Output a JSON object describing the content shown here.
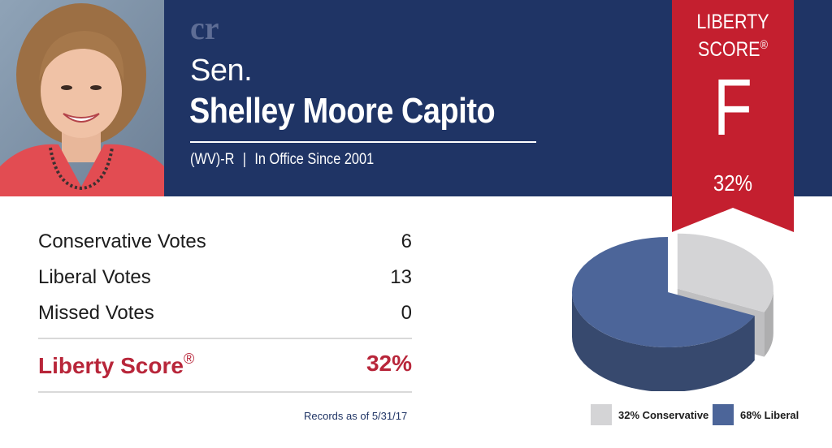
{
  "senator": {
    "prefix": "Sen.",
    "name": "Shelley Moore Capito",
    "state_party": "(WV)-R",
    "separator": "|",
    "tenure": "In Office Since 2001"
  },
  "logo": {
    "text": "cr"
  },
  "ribbon": {
    "title_line1": "LIBERTY",
    "title_line2": "SCORE",
    "registered_mark": "®",
    "grade": "F",
    "percent": "32%"
  },
  "votes": {
    "rows": [
      {
        "label": "Conservative Votes",
        "value": "6"
      },
      {
        "label": "Liberal Votes",
        "value": "13"
      },
      {
        "label": "Missed Votes",
        "value": "0"
      }
    ],
    "score_label": "Liberty Score",
    "score_mark": "®",
    "score_value": "32%"
  },
  "records_note": "Records as of 5/31/17",
  "colors": {
    "navy": "#1f3465",
    "ribbon_red": "#c41f2f",
    "score_red": "#b8263a",
    "conservative_gray": "#d4d4d6",
    "liberal_blue": "#4c6599"
  },
  "chart_data": {
    "type": "pie",
    "title": "",
    "series": [
      {
        "label": "32% Conservative",
        "value": 32,
        "color": "#d4d4d6"
      },
      {
        "label": "68% Liberal",
        "value": 68,
        "color": "#4c6599"
      }
    ],
    "legend_position": "bottom"
  }
}
